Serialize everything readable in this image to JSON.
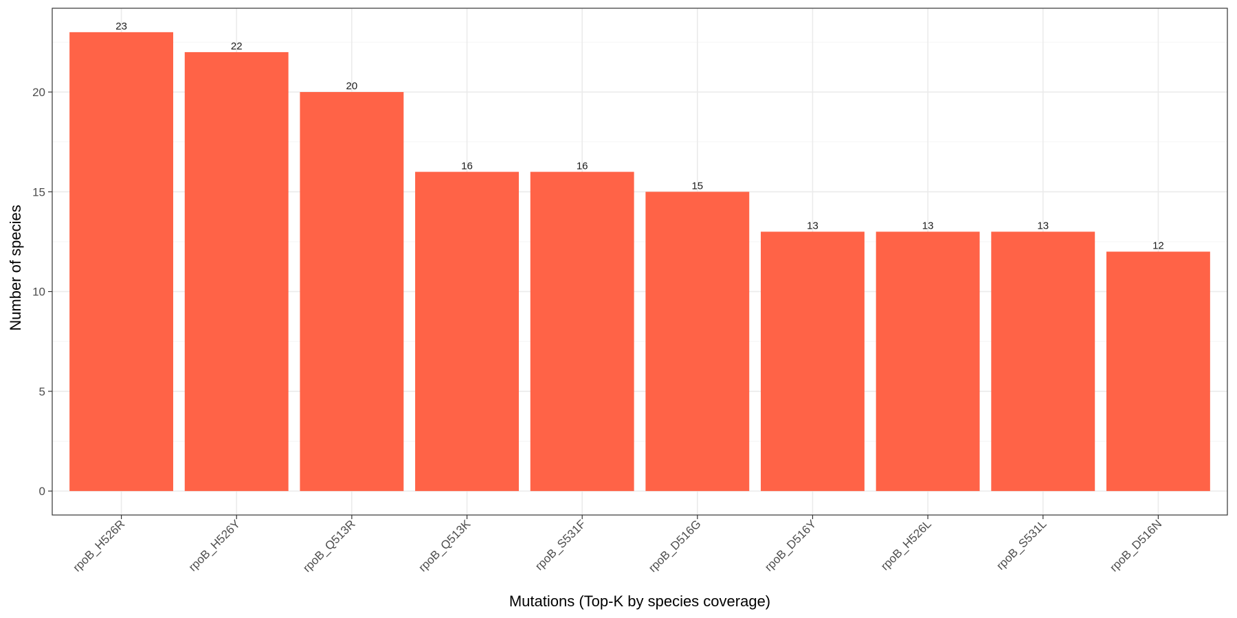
{
  "chart_data": {
    "type": "bar",
    "title": "",
    "xlabel": "Mutations (Top-K by species coverage)",
    "ylabel": "Number of species",
    "categories": [
      "rpoB_H526R",
      "rpoB_H526Y",
      "rpoB_Q513R",
      "rpoB_Q513K",
      "rpoB_S531F",
      "rpoB_D516G",
      "rpoB_D516Y",
      "rpoB_H526L",
      "rpoB_S531L",
      "rpoB_D516N"
    ],
    "values": [
      23,
      22,
      20,
      16,
      16,
      15,
      13,
      13,
      13,
      12
    ],
    "ylim": [
      -1.2,
      24.2
    ],
    "yticks": [
      0,
      5,
      10,
      15,
      20
    ],
    "grid": true,
    "legend": "none",
    "bar_color": "#ff6347",
    "colors": {
      "background": "#ffffff",
      "grid_major": "#ebebeb",
      "grid_minor": "#f5f5f5",
      "panel_border": "#333333"
    }
  }
}
